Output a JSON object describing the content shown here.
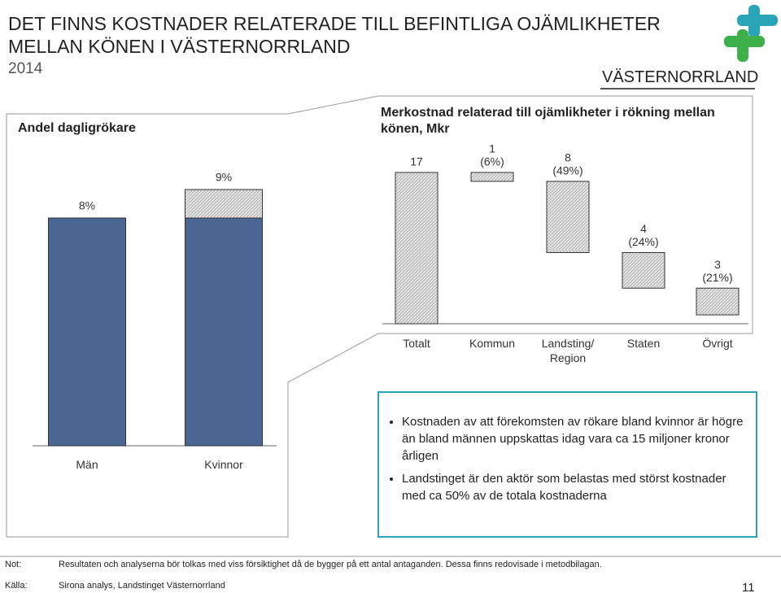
{
  "header": {
    "title_lines": [
      "DET FINNS KOSTNADER RELATERADE TILL BEFINTLIGA OJÄMLIKHETER",
      "MELLAN KÖNEN I VÄSTERNORRLAND"
    ],
    "year": "2014",
    "logo_text": "VÄSTERNORRLAND"
  },
  "chart_data": [
    {
      "type": "bar",
      "title": "Andel dagligrökare",
      "categories": [
        "Män",
        "Kvinnor"
      ],
      "values": [
        8,
        9
      ],
      "value_labels": [
        "8%",
        "9%"
      ],
      "color": "#4a6794",
      "difference_color": "#c4c4c4"
    },
    {
      "type": "waterfall",
      "title": "Merkostnad relaterad till ojämlikheter i rökning mellan könen, Mkr",
      "categories": [
        "Totalt",
        "Kommun",
        "Landsting/ Region",
        "Staten",
        "Övrigt"
      ],
      "values": [
        17,
        1,
        8,
        4,
        3
      ],
      "shares": [
        null,
        6,
        49,
        24,
        21
      ],
      "share_labels": [
        null,
        "(6%)",
        "(49%)",
        "(24%)",
        "(21%)"
      ],
      "color": "#c4c4c4"
    }
  ],
  "bullets": [
    "Kostnaden av att förekomsten av rökare bland kvinnor är högre än bland männen uppskattas idag vara ca 15 miljoner kronor årligen",
    "Landstinget är den aktör som belastas med störst kostnader med ca 50% av de totala kostnaderna"
  ],
  "footer": {
    "note_label": "Not:",
    "note": "Resultaten och analyserna bör tolkas med viss försiktighet då de bygger på ett antal antaganden. Dessa finns redovisade i metodbilagan.",
    "source_label": "Källa:",
    "source": "Sirona analys, Landstinget Västernorrland",
    "page": "11"
  }
}
